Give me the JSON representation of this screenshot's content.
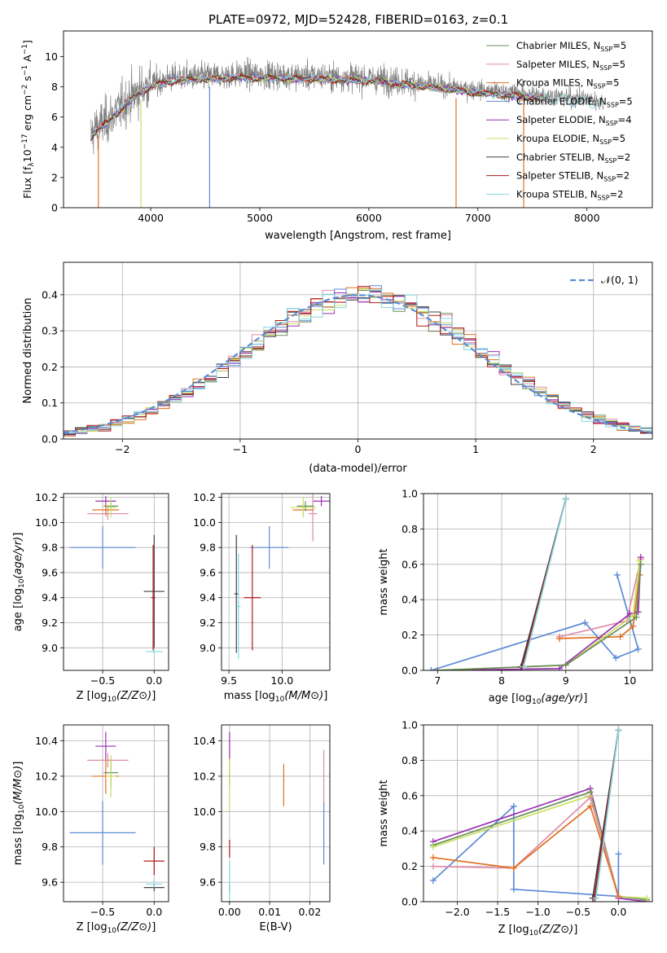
{
  "figure": {
    "title": "PLATE=0972, MJD=52428, FIBERID=0163, z=0.1"
  },
  "models": [
    {
      "key": "chab_miles",
      "label": "Chabrier MILES, N",
      "sub": "SSP",
      "suffix": "=5",
      "color": "#6b8e5a"
    },
    {
      "key": "salp_miles",
      "label": "Salpeter MILES, N",
      "sub": "SSP",
      "suffix": "=5",
      "color": "#e08ca8"
    },
    {
      "key": "krou_miles",
      "label": "Kroupa MILES, N",
      "sub": "SSP",
      "suffix": "=5",
      "color": "#e07020"
    },
    {
      "key": "chab_elodie",
      "label": "Chabrier ELODIE, N",
      "sub": "SSP",
      "suffix": "=5",
      "color": "#5b8bd6"
    },
    {
      "key": "salp_elodie",
      "label": "Salpeter ELODIE, N",
      "sub": "SSP",
      "suffix": "=4",
      "color": "#9b30b0"
    },
    {
      "key": "krou_elodie",
      "label": "Kroupa ELODIE, N",
      "sub": "SSP",
      "suffix": "=5",
      "color": "#c8e060"
    },
    {
      "key": "chab_stelib",
      "label": "Chabrier STELIB, N",
      "sub": "SSP",
      "suffix": "=2",
      "color": "#404040"
    },
    {
      "key": "salp_stelib",
      "label": "Salpeter STELIB, N",
      "sub": "SSP",
      "suffix": "=2",
      "color": "#b01818"
    },
    {
      "key": "krou_stelib",
      "label": "Kroupa STELIB, N",
      "sub": "SSP",
      "suffix": "=2",
      "color": "#80d8e0"
    }
  ],
  "chart_data": [
    {
      "id": "spectrum",
      "type": "line",
      "xlabel": "wavelength [Angstrom, rest frame]",
      "ylabel_parts": [
        "Flux [f",
        "λ",
        "10",
        "−17",
        " erg cm",
        "−2",
        " s",
        "−1",
        " A",
        "−1",
        "]"
      ],
      "xlim": [
        3200,
        8600
      ],
      "ylim": [
        0,
        11.7
      ],
      "xticks": [
        4000,
        5000,
        6000,
        7000,
        8000
      ],
      "yticks": [
        0,
        2,
        4,
        6,
        8,
        10
      ],
      "data_color": "#808080",
      "data_x_range": [
        3450,
        8150
      ],
      "continuum_x": [
        3450,
        3500,
        3600,
        3700,
        3800,
        3900,
        4000,
        4200,
        4500,
        4800,
        5000,
        5500,
        6000,
        6500,
        7000,
        7500,
        8000,
        8150
      ],
      "continuum_y": [
        5.6,
        6.1,
        6.6,
        7.3,
        8.0,
        8.6,
        9.0,
        9.4,
        9.5,
        9.6,
        9.6,
        9.5,
        9.4,
        9.0,
        8.6,
        8.3,
        8.0,
        7.8
      ],
      "drops_x": [
        3520,
        3910,
        4540,
        6800,
        7420
      ]
    },
    {
      "id": "residuals",
      "type": "histogram",
      "xlabel": "(data-model)/error",
      "ylabel": "Normed distribution",
      "xlim": [
        -2.5,
        2.5
      ],
      "ylim": [
        0,
        0.49
      ],
      "xticks": [
        -2,
        -1,
        0,
        1,
        2
      ],
      "xticklabels": [
        "−2",
        "−1",
        "0",
        "1",
        "2"
      ],
      "yticks": [
        0,
        0.1,
        0.2,
        0.3,
        0.4
      ],
      "yticklabels": [
        "0.0",
        "0.1",
        "0.2",
        "0.3",
        "0.4"
      ],
      "bins": 50,
      "legend": "𝒩(0, 1)",
      "normal_color": "#5b8bd6"
    },
    {
      "id": "z_age",
      "type": "scatter",
      "xlabel": "Z [log10(Z/Z⊙)]",
      "ylabel": "age [log10(age/yr)]",
      "xlim": [
        -0.88,
        0.14
      ],
      "ylim": [
        8.82,
        10.23
      ],
      "xticks": [
        -0.5,
        0
      ],
      "xticklabels": [
        "−0.5",
        "0.0"
      ],
      "yticks": [
        9.0,
        9.2,
        9.4,
        9.6,
        9.8,
        10.0,
        10.2
      ],
      "yticklabels": [
        "9.0",
        "9.2",
        "9.4",
        "9.6",
        "9.8",
        "10.0",
        "10.2"
      ],
      "points": [
        {
          "m": 3,
          "x": -0.5,
          "xe": 0.32,
          "y": 9.8,
          "ye": 0.17
        },
        {
          "m": 4,
          "x": -0.47,
          "xe": 0.1,
          "y": 10.17,
          "ye": 0.04
        },
        {
          "m": 1,
          "x": -0.45,
          "xe": 0.2,
          "y": 10.07,
          "ye": 0.05
        },
        {
          "m": 2,
          "x": -0.47,
          "xe": 0.13,
          "y": 10.1,
          "ye": 0.05
        },
        {
          "m": 0,
          "x": -0.42,
          "xe": 0.07,
          "y": 10.13,
          "ye": 0.04
        },
        {
          "m": 5,
          "x": -0.42,
          "xe": 0.05,
          "y": 10.12,
          "ye": 0.08
        },
        {
          "m": 6,
          "x": 0.0,
          "xe": 0.1,
          "y": 9.45,
          "ye": 0.45
        },
        {
          "m": 7,
          "x": -0.01,
          "xe": 0.02,
          "y": 9.4,
          "ye": 0.42
        },
        {
          "m": 8,
          "x": 0.0,
          "xe": 0.08,
          "y": 8.97,
          "ye": 0.02
        }
      ]
    },
    {
      "id": "mass_age",
      "type": "scatter",
      "xlabel": "mass [log10(M/M⊙)]",
      "ylabel": "",
      "xlim": [
        9.43,
        10.45
      ],
      "ylim": [
        8.82,
        10.23
      ],
      "xticks": [
        9.5,
        10.0
      ],
      "xticklabels": [
        "9.5",
        "10.0"
      ],
      "yticks": [
        9.0,
        9.2,
        9.4,
        9.6,
        9.8,
        10.0,
        10.2
      ],
      "yticklabels": [
        "9.0",
        "9.2",
        "9.4",
        "9.6",
        "9.8",
        "10.0",
        "10.2"
      ],
      "points": [
        {
          "m": 3,
          "x": 9.88,
          "xe": 0.18,
          "y": 9.8,
          "ye": 0.17
        },
        {
          "m": 4,
          "x": 10.37,
          "xe": 0.08,
          "y": 10.17,
          "ye": 0.04
        },
        {
          "m": 1,
          "x": 10.29,
          "xe": 0.04,
          "y": 10.07,
          "ye": 0.22
        },
        {
          "m": 2,
          "x": 10.2,
          "xe": 0.1,
          "y": 10.1,
          "ye": 0.05
        },
        {
          "m": 0,
          "x": 10.22,
          "xe": 0.08,
          "y": 10.13,
          "ye": 0.04
        },
        {
          "m": 5,
          "x": 10.2,
          "xe": 0.12,
          "y": 10.12,
          "ye": 0.08
        },
        {
          "m": 6,
          "x": 9.57,
          "xe": 0.02,
          "y": 9.43,
          "ye": 0.47
        },
        {
          "m": 7,
          "x": 9.72,
          "xe": 0.08,
          "y": 9.4,
          "ye": 0.42
        },
        {
          "m": 8,
          "x": 9.59,
          "xe": 0.02,
          "y": 9.33,
          "ye": 0.42
        }
      ]
    },
    {
      "id": "age_weight",
      "type": "line",
      "xlabel": "age [log10(age/yr)]",
      "ylabel": "mass weight",
      "xlim": [
        6.78,
        10.35
      ],
      "ylim": [
        0,
        1.0
      ],
      "xticks": [
        7,
        8,
        9,
        10
      ],
      "xticklabels": [
        "7",
        "8",
        "9",
        "10"
      ],
      "yticks": [
        0,
        0.2,
        0.4,
        0.6,
        0.8,
        1.0
      ],
      "yticklabels": [
        "0.0",
        "0.2",
        "0.4",
        "0.6",
        "0.8",
        "1.0"
      ],
      "series": [
        {
          "m": 3,
          "x": [
            9.8,
            10.13,
            9.78,
            9.3,
            6.9
          ],
          "y": [
            0.54,
            0.12,
            0.07,
            0.27,
            0.0
          ]
        },
        {
          "m": 1,
          "x": [
            10.17,
            9.95,
            8.9
          ],
          "y": [
            0.63,
            0.28,
            0.19
          ]
        },
        {
          "m": 2,
          "x": [
            10.15,
            10.05,
            9.85,
            8.9
          ],
          "y": [
            0.54,
            0.25,
            0.19,
            0.18
          ]
        },
        {
          "m": 4,
          "x": [
            10.17,
            10.13,
            10.0,
            8.9,
            7.0
          ],
          "y": [
            0.64,
            0.33,
            0.32,
            0.01,
            0.0
          ]
        },
        {
          "m": 5,
          "x": [
            10.15,
            10.05,
            9.0,
            7.0
          ],
          "y": [
            0.62,
            0.31,
            0.03,
            0.0
          ]
        },
        {
          "m": 0,
          "x": [
            10.17,
            10.1,
            9.0,
            7.0
          ],
          "y": [
            0.6,
            0.3,
            0.03,
            0.0
          ]
        },
        {
          "m": 6,
          "x": [
            9.0,
            8.3
          ],
          "y": [
            0.97,
            0.02
          ]
        },
        {
          "m": 7,
          "x": [
            9.0,
            8.32
          ],
          "y": [
            0.97,
            0.02
          ]
        },
        {
          "m": 8,
          "x": [
            9.0,
            8.34
          ],
          "y": [
            0.97,
            0.02
          ]
        }
      ]
    },
    {
      "id": "z_mass",
      "type": "scatter",
      "xlabel": "Z [log10(Z/Z⊙)]",
      "ylabel": "mass [log10(M/M⊙)]",
      "xlim": [
        -0.88,
        0.14
      ],
      "ylim": [
        9.49,
        10.49
      ],
      "xticks": [
        -0.5,
        0
      ],
      "xticklabels": [
        "−0.5",
        "0.0"
      ],
      "yticks": [
        9.6,
        9.8,
        10.0,
        10.2,
        10.4
      ],
      "yticklabels": [
        "9.6",
        "9.8",
        "10.0",
        "10.2",
        "10.4"
      ],
      "points": [
        {
          "m": 3,
          "x": -0.5,
          "xe": 0.32,
          "y": 9.88,
          "ye": 0.18
        },
        {
          "m": 4,
          "x": -0.47,
          "xe": 0.1,
          "y": 10.37,
          "ye": 0.08
        },
        {
          "m": 1,
          "x": -0.45,
          "xe": 0.2,
          "y": 10.29,
          "ye": 0.04
        },
        {
          "m": 2,
          "x": -0.47,
          "xe": 0.13,
          "y": 10.2,
          "ye": 0.1
        },
        {
          "m": 0,
          "x": -0.42,
          "xe": 0.07,
          "y": 10.22,
          "ye": 0.08
        },
        {
          "m": 5,
          "x": -0.42,
          "xe": 0.05,
          "y": 10.2,
          "ye": 0.12
        },
        {
          "m": 6,
          "x": 0.0,
          "xe": 0.1,
          "y": 9.57,
          "ye": 0.02
        },
        {
          "m": 7,
          "x": 0.0,
          "xe": 0.1,
          "y": 9.72,
          "ye": 0.08
        },
        {
          "m": 8,
          "x": 0.0,
          "xe": 0.08,
          "y": 9.59,
          "ye": 0.02
        }
      ]
    },
    {
      "id": "ebv_mass",
      "type": "scatter",
      "xlabel": "E(B-V)",
      "ylabel": "",
      "xlim": [
        -0.002,
        0.025
      ],
      "ylim": [
        9.49,
        10.49
      ],
      "xticks": [
        0,
        0.01,
        0.02
      ],
      "xticklabels": [
        "0.00",
        "0.01",
        "0.02"
      ],
      "yticks": [
        9.6,
        9.8,
        10.0,
        10.2,
        10.4
      ],
      "yticklabels": [
        "9.6",
        "9.8",
        "10.0",
        "10.2",
        "10.4"
      ],
      "points": [
        {
          "m": 3,
          "x": 0.0235,
          "xe": 0,
          "y": 9.88,
          "ye": 0.18
        },
        {
          "m": 4,
          "x": 0.0,
          "xe": 0,
          "y": 10.37,
          "ye": 0.08
        },
        {
          "m": 1,
          "x": 0.0235,
          "xe": 0,
          "y": 10.2,
          "ye": 0.15
        },
        {
          "m": 2,
          "x": 0.0135,
          "xe": 0,
          "y": 10.15,
          "ye": 0.12
        },
        {
          "m": 0,
          "x": 0.0,
          "xe": 0,
          "y": 10.22,
          "ye": 0.08
        },
        {
          "m": 5,
          "x": 0.0,
          "xe": 0,
          "y": 10.15,
          "ye": 0.15
        },
        {
          "m": 6,
          "x": 0.0,
          "xe": 0,
          "y": 9.57,
          "ye": 0.02
        },
        {
          "m": 7,
          "x": 0.0,
          "xe": 0,
          "y": 9.79,
          "ye": 0.05
        },
        {
          "m": 8,
          "x": 0.0,
          "xe": 0,
          "y": 9.6,
          "ye": 0.12
        }
      ]
    },
    {
      "id": "z_weight",
      "type": "line",
      "xlabel": "Z [log10(Z/Z⊙)]",
      "ylabel": "mass weight",
      "xlim": [
        -2.42,
        0.42
      ],
      "ylim": [
        0,
        1.0
      ],
      "xticks": [
        -2.0,
        -1.5,
        -1.0,
        -0.5,
        0.0
      ],
      "xticklabels": [
        "−2.0",
        "−1.5",
        "−1.0",
        "−0.5",
        "0.0"
      ],
      "yticks": [
        0,
        0.2,
        0.4,
        0.6,
        0.8,
        1.0
      ],
      "yticklabels": [
        "0.0",
        "0.2",
        "0.4",
        "0.6",
        "0.8",
        "1.0"
      ],
      "series": [
        {
          "m": 3,
          "x": [
            -2.3,
            -1.3,
            -1.3,
            0.0,
            0.0
          ],
          "y": [
            0.12,
            0.54,
            0.07,
            0.03,
            0.27
          ]
        },
        {
          "m": 4,
          "x": [
            -2.3,
            -0.35,
            0.0,
            0.35
          ],
          "y": [
            0.34,
            0.64,
            0.02,
            0.0
          ]
        },
        {
          "m": 0,
          "x": [
            -2.3,
            -0.35,
            0.0,
            0.35
          ],
          "y": [
            0.32,
            0.62,
            0.03,
            0.01
          ]
        },
        {
          "m": 5,
          "x": [
            -2.3,
            -0.35,
            0.0,
            0.35
          ],
          "y": [
            0.31,
            0.6,
            0.03,
            0.02
          ]
        },
        {
          "m": 1,
          "x": [
            -2.3,
            -1.3,
            -0.35,
            0.0
          ],
          "y": [
            0.2,
            0.19,
            0.59,
            0.03
          ]
        },
        {
          "m": 2,
          "x": [
            -2.3,
            -1.3,
            -0.35,
            0.0
          ],
          "y": [
            0.25,
            0.19,
            0.54,
            0.03
          ]
        },
        {
          "m": 6,
          "x": [
            -0.32,
            0.0
          ],
          "y": [
            0.02,
            0.97
          ]
        },
        {
          "m": 7,
          "x": [
            -0.3,
            0.0
          ],
          "y": [
            0.02,
            0.97
          ]
        },
        {
          "m": 8,
          "x": [
            -0.28,
            0.0
          ],
          "y": [
            0.02,
            0.97
          ]
        }
      ]
    }
  ]
}
